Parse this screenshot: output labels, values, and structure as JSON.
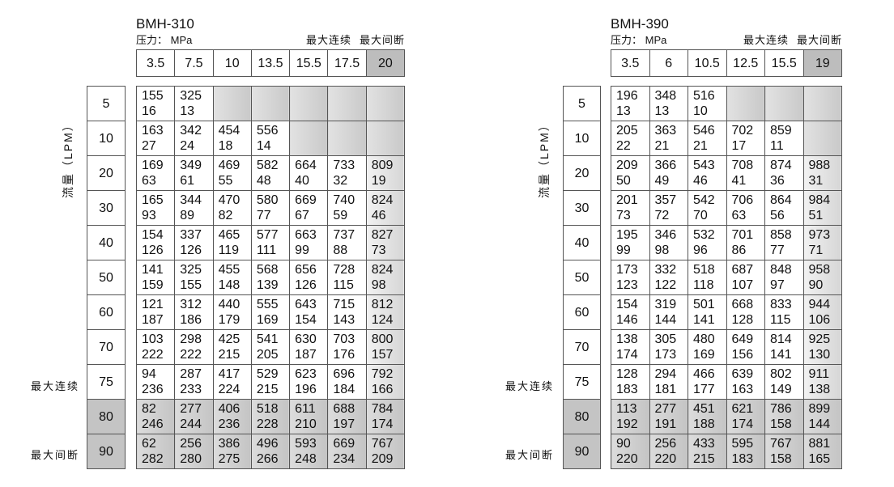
{
  "tables": [
    {
      "model": "BMH-310",
      "pressure_unit": "压力： MPa",
      "max_continuous": "最大连续",
      "max_intermittent": "最大间断",
      "flow_axis_label": "流量（LPM）",
      "pressures": [
        "3.5",
        "7.5",
        "10",
        "13.5",
        "15.5",
        "17.5",
        "20"
      ],
      "flows": [
        "5",
        "10",
        "20",
        "30",
        "40",
        "50",
        "60",
        "70",
        "75",
        "80",
        "90"
      ],
      "flow_labels": {
        "75": "最大连续",
        "90": "最大间断"
      },
      "cells": [
        [
          [
            "155",
            "16"
          ],
          [
            "325",
            "13"
          ],
          null,
          null,
          null,
          null,
          null
        ],
        [
          [
            "163",
            "27"
          ],
          [
            "342",
            "24"
          ],
          [
            "454",
            "18"
          ],
          [
            "556",
            "14"
          ],
          null,
          null,
          null
        ],
        [
          [
            "169",
            "63"
          ],
          [
            "349",
            "61"
          ],
          [
            "469",
            "55"
          ],
          [
            "582",
            "48"
          ],
          [
            "664",
            "40"
          ],
          [
            "733",
            "32"
          ],
          [
            "809",
            "19"
          ]
        ],
        [
          [
            "165",
            "93"
          ],
          [
            "344",
            "89"
          ],
          [
            "470",
            "82"
          ],
          [
            "580",
            "77"
          ],
          [
            "669",
            "67"
          ],
          [
            "740",
            "59"
          ],
          [
            "824",
            "46"
          ]
        ],
        [
          [
            "154",
            "126"
          ],
          [
            "337",
            "126"
          ],
          [
            "465",
            "119"
          ],
          [
            "577",
            "111"
          ],
          [
            "663",
            "99"
          ],
          [
            "737",
            "88"
          ],
          [
            "827",
            "73"
          ]
        ],
        [
          [
            "141",
            "159"
          ],
          [
            "325",
            "155"
          ],
          [
            "455",
            "148"
          ],
          [
            "568",
            "139"
          ],
          [
            "656",
            "126"
          ],
          [
            "728",
            "115"
          ],
          [
            "824",
            "98"
          ]
        ],
        [
          [
            "121",
            "187"
          ],
          [
            "312",
            "186"
          ],
          [
            "440",
            "179"
          ],
          [
            "555",
            "169"
          ],
          [
            "643",
            "154"
          ],
          [
            "715",
            "143"
          ],
          [
            "812",
            "124"
          ]
        ],
        [
          [
            "103",
            "222"
          ],
          [
            "298",
            "222"
          ],
          [
            "425",
            "215"
          ],
          [
            "541",
            "205"
          ],
          [
            "630",
            "187"
          ],
          [
            "703",
            "176"
          ],
          [
            "800",
            "157"
          ]
        ],
        [
          [
            "94",
            "236"
          ],
          [
            "287",
            "233"
          ],
          [
            "417",
            "224"
          ],
          [
            "529",
            "215"
          ],
          [
            "623",
            "196"
          ],
          [
            "696",
            "184"
          ],
          [
            "792",
            "166"
          ]
        ],
        [
          [
            "82",
            "246"
          ],
          [
            "277",
            "244"
          ],
          [
            "406",
            "236"
          ],
          [
            "518",
            "228"
          ],
          [
            "611",
            "210"
          ],
          [
            "688",
            "197"
          ],
          [
            "784",
            "174"
          ]
        ],
        [
          [
            "62",
            "282"
          ],
          [
            "256",
            "280"
          ],
          [
            "386",
            "275"
          ],
          [
            "496",
            "266"
          ],
          [
            "593",
            "248"
          ],
          [
            "669",
            "234"
          ],
          [
            "767",
            "209"
          ]
        ]
      ]
    },
    {
      "model": "BMH-390",
      "pressure_unit": "压力： MPa",
      "max_continuous": "最大连续",
      "max_intermittent": "最大间断",
      "flow_axis_label": "流量（LPM）",
      "pressures": [
        "3.5",
        "6",
        "10.5",
        "12.5",
        "15.5",
        "19"
      ],
      "flows": [
        "5",
        "10",
        "20",
        "30",
        "40",
        "50",
        "60",
        "70",
        "75",
        "80",
        "90"
      ],
      "flow_labels": {
        "75": "最大连续",
        "90": "最大间断"
      },
      "cells": [
        [
          [
            "196",
            "13"
          ],
          [
            "348",
            "13"
          ],
          [
            "516",
            "10"
          ],
          null,
          null,
          null
        ],
        [
          [
            "205",
            "22"
          ],
          [
            "363",
            "21"
          ],
          [
            "546",
            "21"
          ],
          [
            "702",
            "17"
          ],
          [
            "859",
            "11"
          ],
          null
        ],
        [
          [
            "209",
            "50"
          ],
          [
            "366",
            "49"
          ],
          [
            "543",
            "46"
          ],
          [
            "708",
            "41"
          ],
          [
            "874",
            "36"
          ],
          [
            "988",
            "31"
          ]
        ],
        [
          [
            "201",
            "73"
          ],
          [
            "357",
            "72"
          ],
          [
            "542",
            "70"
          ],
          [
            "706",
            "63"
          ],
          [
            "864",
            "56"
          ],
          [
            "984",
            "51"
          ]
        ],
        [
          [
            "195",
            "99"
          ],
          [
            "346",
            "98"
          ],
          [
            "532",
            "96"
          ],
          [
            "701",
            "86"
          ],
          [
            "858",
            "77"
          ],
          [
            "973",
            "71"
          ]
        ],
        [
          [
            "173",
            "123"
          ],
          [
            "332",
            "122"
          ],
          [
            "518",
            "118"
          ],
          [
            "687",
            "107"
          ],
          [
            "848",
            "97"
          ],
          [
            "958",
            "90"
          ]
        ],
        [
          [
            "154",
            "146"
          ],
          [
            "319",
            "144"
          ],
          [
            "501",
            "141"
          ],
          [
            "668",
            "128"
          ],
          [
            "833",
            "115"
          ],
          [
            "944",
            "106"
          ]
        ],
        [
          [
            "138",
            "174"
          ],
          [
            "305",
            "173"
          ],
          [
            "480",
            "169"
          ],
          [
            "649",
            "156"
          ],
          [
            "814",
            "141"
          ],
          [
            "925",
            "130"
          ]
        ],
        [
          [
            "128",
            "183"
          ],
          [
            "294",
            "181"
          ],
          [
            "466",
            "177"
          ],
          [
            "639",
            "163"
          ],
          [
            "802",
            "149"
          ],
          [
            "911",
            "138"
          ]
        ],
        [
          [
            "113",
            "192"
          ],
          [
            "277",
            "191"
          ],
          [
            "451",
            "188"
          ],
          [
            "621",
            "174"
          ],
          [
            "786",
            "158"
          ],
          [
            "899",
            "144"
          ]
        ],
        [
          [
            "90",
            "220"
          ],
          [
            "256",
            "220"
          ],
          [
            "433",
            "215"
          ],
          [
            "595",
            "183"
          ],
          [
            "767",
            "158"
          ],
          [
            "881",
            "165"
          ]
        ]
      ]
    }
  ]
}
